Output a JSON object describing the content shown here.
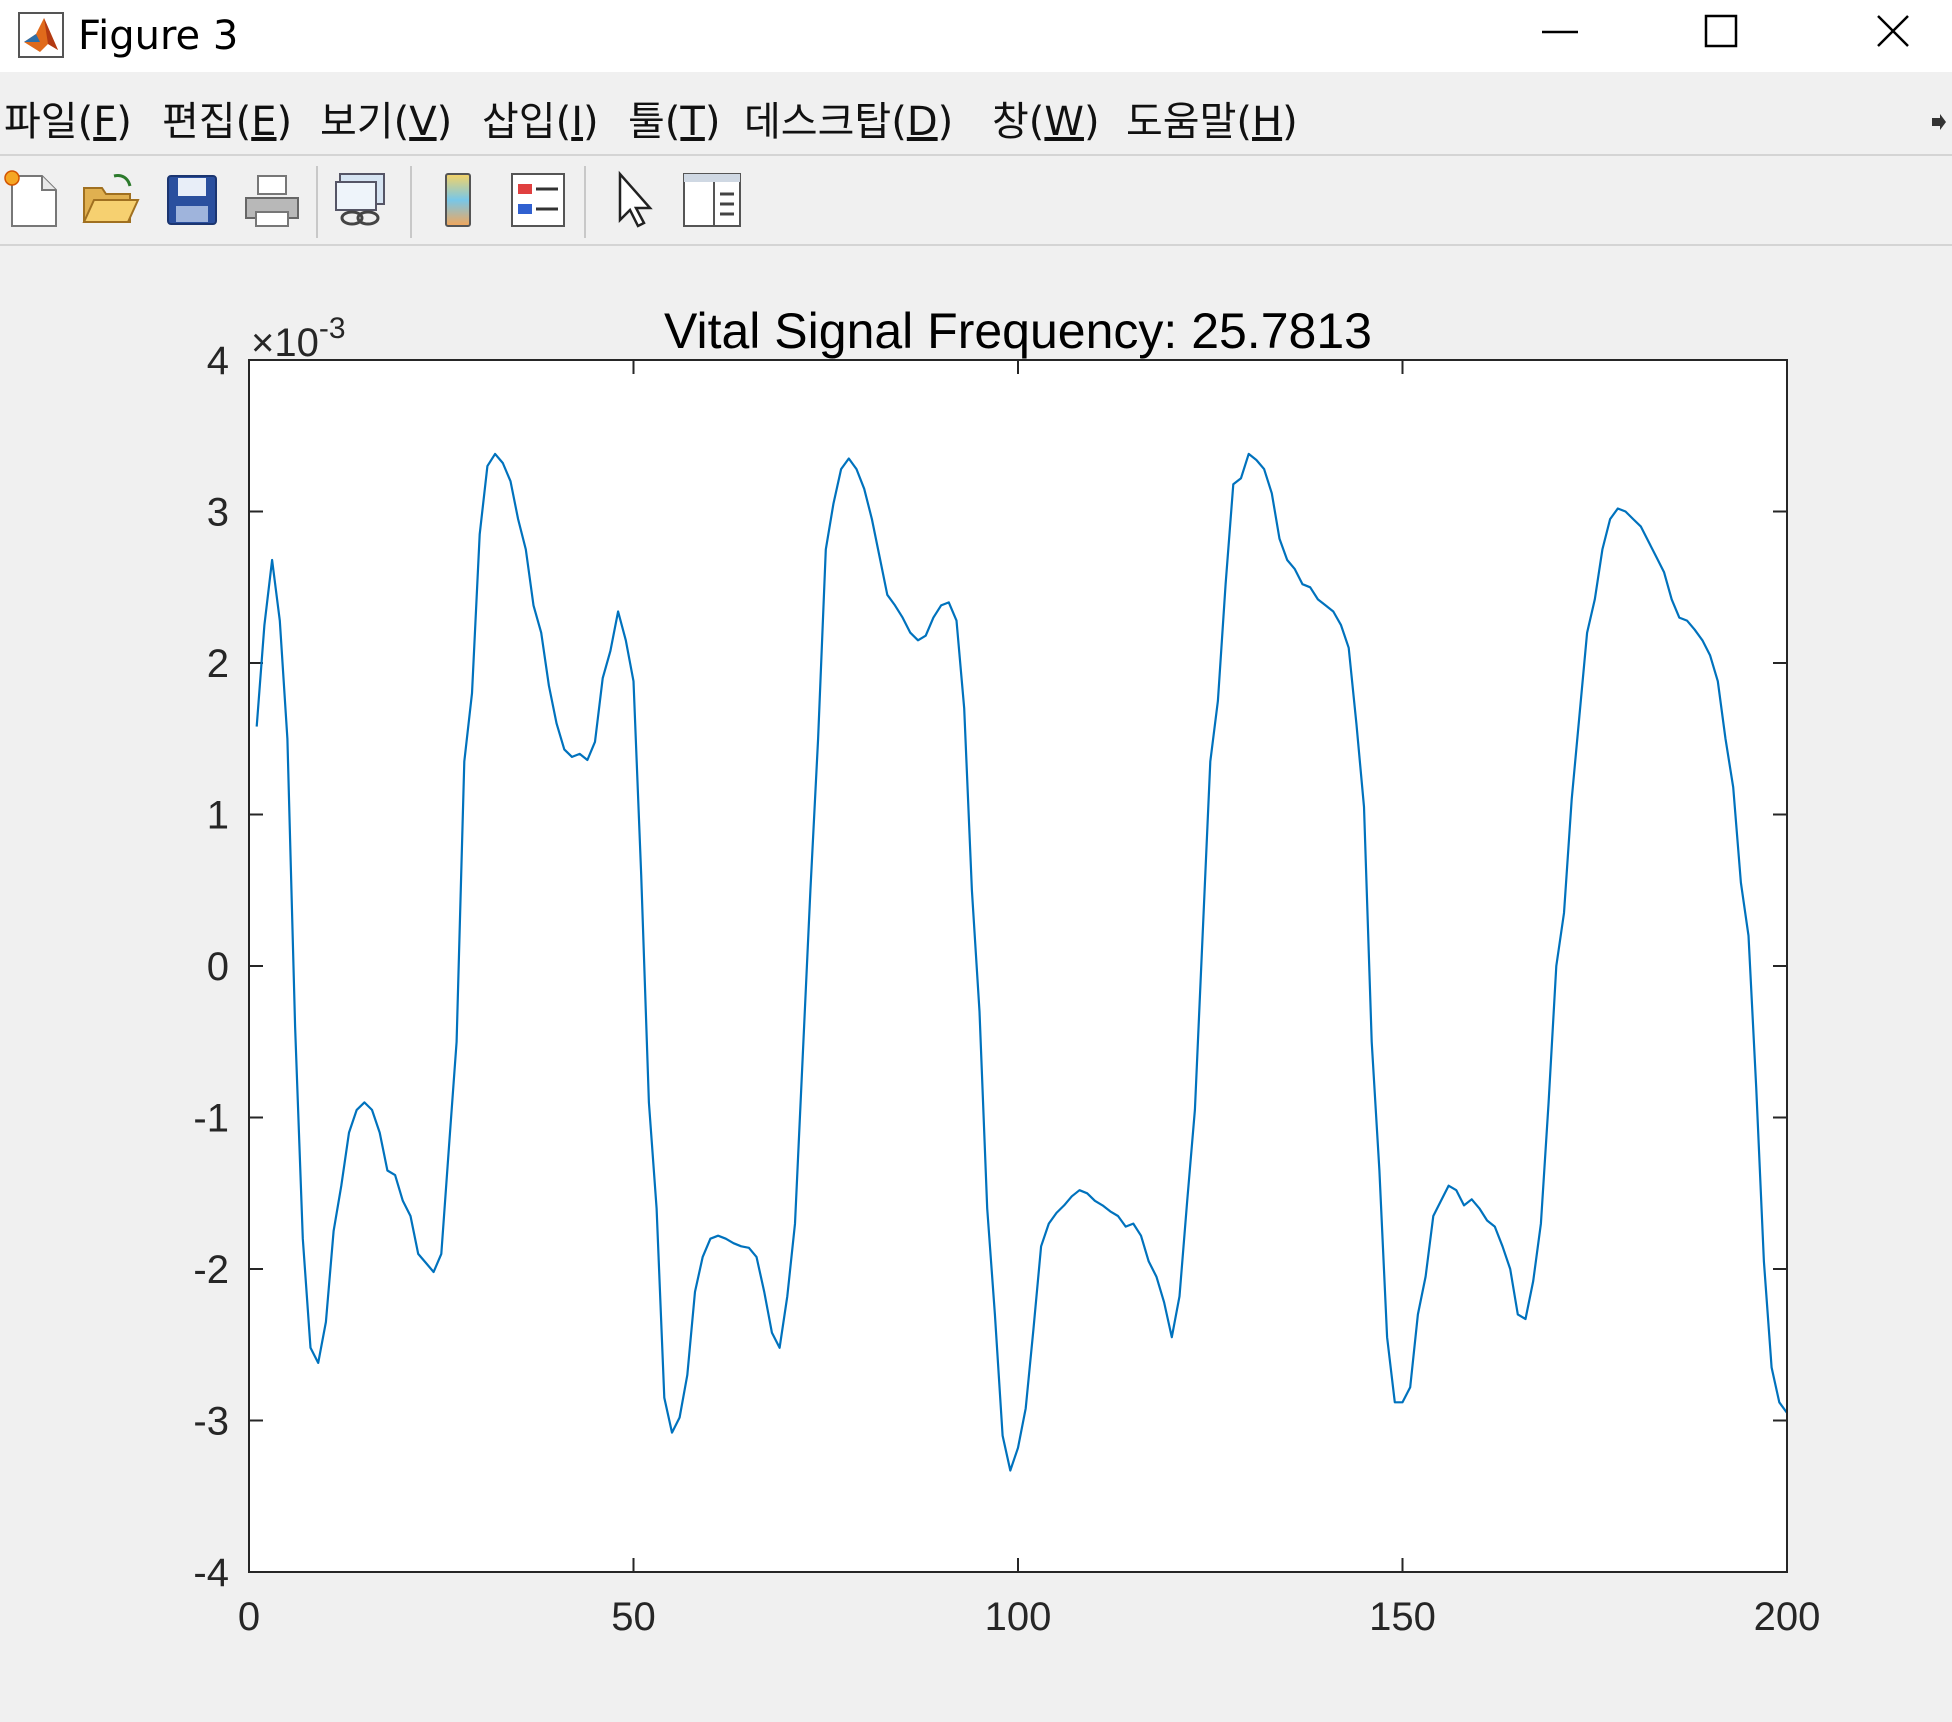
{
  "window": {
    "title": "Figure 3",
    "icon": "matlab-logo-icon",
    "controls": [
      "minimize-icon",
      "maximize-icon",
      "close-icon"
    ]
  },
  "menu": {
    "items": [
      {
        "label": "파일(",
        "mnemonic": "F",
        "tail": ")"
      },
      {
        "label": "편집(",
        "mnemonic": "E",
        "tail": ")"
      },
      {
        "label": "보기(",
        "mnemonic": "V",
        "tail": ")"
      },
      {
        "label": "삽입(",
        "mnemonic": "I",
        "tail": ")"
      },
      {
        "label": "툴(",
        "mnemonic": "T",
        "tail": ")"
      },
      {
        "label": "데스크탑(",
        "mnemonic": "D",
        "tail": ")"
      },
      {
        "label": "창(",
        "mnemonic": "W",
        "tail": ")"
      },
      {
        "label": "도움말(",
        "mnemonic": "H",
        "tail": ")"
      }
    ]
  },
  "toolbar": {
    "tools": [
      "new-figure-icon",
      "open-file-icon",
      "save-icon",
      "print-icon",
      "link-plot-icon",
      "colorbar-icon",
      "legend-icon",
      "pointer-icon",
      "property-inspector-icon"
    ]
  },
  "colors": {
    "line": "#0072bd",
    "axes_bg": "#ffffff",
    "figure_bg": "#f0f0f0"
  },
  "chart_data": {
    "type": "line",
    "title": "Vital Signal Frequency: 25.7813",
    "xlabel": "",
    "ylabel": "",
    "exponent_label": "×10",
    "exponent_power": "-3",
    "xlim": [
      0,
      200
    ],
    "ylim": [
      -4,
      4
    ],
    "xticks": [
      0,
      50,
      100,
      150,
      200
    ],
    "xtick_labels": [
      "0",
      "50",
      "100",
      "150",
      "200"
    ],
    "yticks": [
      -4,
      -3,
      -2,
      -1,
      0,
      1,
      2,
      3,
      4
    ],
    "ytick_labels": [
      "-4",
      "-3",
      "-2",
      "-1",
      "0",
      "1",
      "2",
      "3",
      "4"
    ],
    "grid": false,
    "legend": "none",
    "series": [
      {
        "x": [
          1,
          2,
          3,
          4,
          5,
          6,
          7,
          8,
          9,
          10,
          11,
          12,
          13,
          14,
          15,
          16,
          17,
          18,
          19,
          20,
          21,
          22,
          23,
          24,
          25,
          26,
          27,
          28,
          29,
          30,
          31,
          32,
          33,
          34,
          35,
          36,
          37,
          38,
          39,
          40,
          41,
          42,
          43,
          44,
          45,
          46,
          47,
          48,
          49,
          50,
          51,
          52,
          53,
          54,
          55,
          56,
          57,
          58,
          59,
          60,
          61,
          62,
          63,
          64,
          65,
          66,
          67,
          68,
          69,
          70,
          71,
          72,
          73,
          74,
          75,
          76,
          77,
          78,
          79,
          80,
          81,
          82,
          83,
          84,
          85,
          86,
          87,
          88,
          89,
          90,
          91,
          92,
          93,
          94,
          95,
          96,
          97,
          98,
          99,
          100,
          101,
          102,
          103,
          104,
          105,
          106,
          107,
          108,
          109,
          110,
          111,
          112,
          113,
          114,
          115,
          116,
          117,
          118,
          119,
          120,
          121,
          122,
          123,
          124,
          125,
          126,
          127,
          128,
          129,
          130,
          131,
          132,
          133,
          134,
          135,
          136,
          137,
          138,
          139,
          140,
          141,
          142,
          143,
          144,
          145,
          146,
          147,
          148,
          149,
          150,
          151,
          152,
          153,
          154,
          155,
          156,
          157,
          158,
          159,
          160,
          161,
          162,
          163,
          164,
          165,
          166,
          167,
          168,
          169,
          170,
          171,
          172,
          173,
          174,
          175,
          176,
          177,
          178,
          179,
          180,
          181,
          182,
          183,
          184,
          185,
          186,
          187,
          188,
          189,
          190,
          191,
          192,
          193,
          194,
          195,
          196,
          197,
          198,
          199,
          200
        ],
        "y": [
          1.58,
          2.25,
          2.68,
          2.28,
          1.5,
          -0.4,
          -1.8,
          -2.52,
          -2.62,
          -2.35,
          -1.75,
          -1.45,
          -1.1,
          -0.95,
          -0.9,
          -0.95,
          -1.1,
          -1.35,
          -1.38,
          -1.55,
          -1.65,
          -1.9,
          -1.96,
          -2.02,
          -1.9,
          -1.2,
          -0.5,
          1.35,
          1.8,
          2.85,
          3.3,
          3.38,
          3.32,
          3.2,
          2.95,
          2.75,
          2.38,
          2.2,
          1.85,
          1.6,
          1.43,
          1.38,
          1.4,
          1.36,
          1.48,
          1.9,
          2.08,
          2.34,
          2.15,
          1.88,
          0.6,
          -0.9,
          -1.6,
          -2.85,
          -3.08,
          -2.98,
          -2.7,
          -2.15,
          -1.92,
          -1.8,
          -1.78,
          -1.8,
          -1.83,
          -1.85,
          -1.86,
          -1.92,
          -2.15,
          -2.42,
          -2.52,
          -2.18,
          -1.7,
          -0.6,
          0.5,
          1.5,
          2.75,
          3.05,
          3.28,
          3.35,
          3.28,
          3.15,
          2.95,
          2.7,
          2.45,
          2.38,
          2.3,
          2.2,
          2.15,
          2.18,
          2.3,
          2.38,
          2.4,
          2.28,
          1.7,
          0.5,
          -0.3,
          -1.6,
          -2.3,
          -3.1,
          -3.33,
          -3.18,
          -2.92,
          -2.4,
          -1.85,
          -1.7,
          -1.63,
          -1.58,
          -1.52,
          -1.48,
          -1.5,
          -1.55,
          -1.58,
          -1.62,
          -1.65,
          -1.72,
          -1.7,
          -1.78,
          -1.95,
          -2.05,
          -2.22,
          -2.45,
          -2.18,
          -1.55,
          -0.95,
          0.2,
          1.35,
          1.75,
          2.52,
          3.18,
          3.22,
          3.38,
          3.34,
          3.28,
          3.12,
          2.82,
          2.68,
          2.62,
          2.52,
          2.5,
          2.42,
          2.38,
          2.34,
          2.25,
          2.1,
          1.6,
          1.05,
          -0.5,
          -1.35,
          -2.45,
          -2.88,
          -2.88,
          -2.78,
          -2.3,
          -2.05,
          -1.65,
          -1.55,
          -1.45,
          -1.48,
          -1.58,
          -1.54,
          -1.6,
          -1.68,
          -1.72,
          -1.85,
          -2.0,
          -2.3,
          -2.33,
          -2.08,
          -1.7,
          -0.9,
          0.0,
          0.35,
          1.1,
          1.65,
          2.2,
          2.42,
          2.75,
          2.95,
          3.02,
          3.0,
          2.95,
          2.9,
          2.8,
          2.7,
          2.6,
          2.42,
          2.3,
          2.28,
          2.22,
          2.15,
          2.05,
          1.88,
          1.5,
          1.18,
          0.55,
          0.2,
          -0.8,
          -1.95,
          -2.65,
          -2.88,
          -2.95
        ]
      }
    ]
  }
}
